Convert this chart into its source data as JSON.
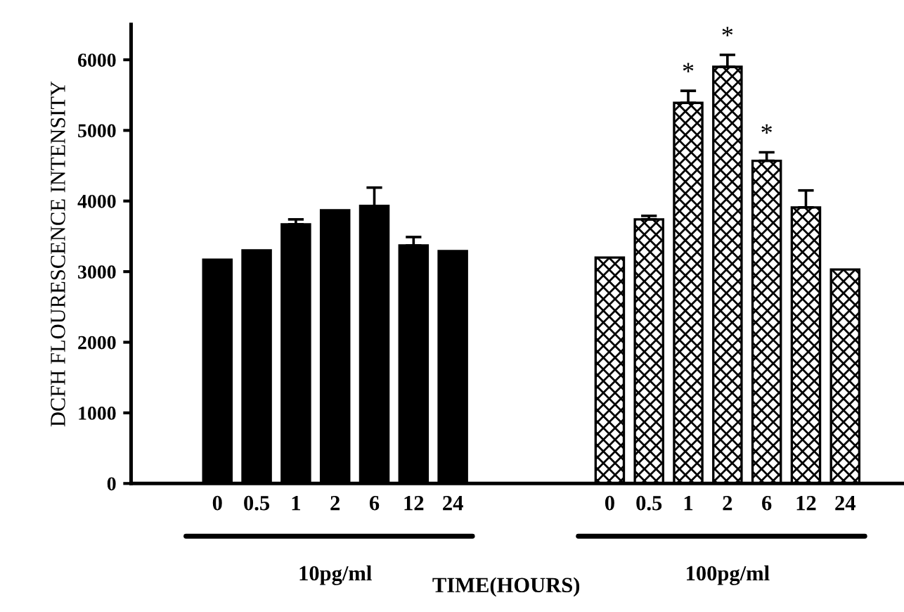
{
  "chart_data": {
    "type": "bar",
    "xlabel": "TIME(HOURS)",
    "ylabel": "DCFH FLOURESCENCE INTENSITY",
    "categories": [
      null,
      "0",
      "0.5",
      "1",
      "2",
      "6",
      "12",
      "24",
      null,
      null,
      null,
      "0",
      "0.5",
      "1",
      "2",
      "6",
      "12",
      "24",
      null
    ],
    "series": [
      {
        "color": "#000000",
        "values": [
          null,
          3170,
          3300,
          3670,
          3870,
          3930,
          3370,
          3290,
          null,
          null,
          null,
          null,
          null,
          null,
          null,
          null,
          null,
          null,
          null
        ],
        "errors": [
          null,
          null,
          null,
          [
            3670,
            3740
          ],
          null,
          [
            3930,
            4190
          ],
          [
            3370,
            3490
          ],
          null,
          null,
          null,
          null,
          null,
          null,
          null,
          null,
          null,
          null,
          null,
          null
        ]
      },
      {
        "color": "#000000",
        "values": [
          null,
          null,
          null,
          null,
          null,
          null,
          null,
          null,
          null,
          null,
          null,
          3200,
          3740,
          5390,
          5900,
          4570,
          3910,
          3030,
          null
        ],
        "errors": [
          null,
          null,
          null,
          null,
          null,
          null,
          null,
          null,
          null,
          null,
          null,
          null,
          [
            3740,
            3790
          ],
          [
            5390,
            5560
          ],
          [
            5900,
            6070
          ],
          [
            4570,
            4690
          ],
          [
            3910,
            4150
          ],
          null,
          null
        ],
        "value_labels": [
          null,
          null,
          null,
          null,
          null,
          null,
          null,
          null,
          null,
          null,
          null,
          null,
          null,
          "*",
          "*",
          "*",
          null,
          null,
          null
        ]
      }
    ],
    "annotations": [
      "10pg/ml",
      "100pg/ml"
    ],
    "ylim": [
      0,
      6500
    ],
    "yticks": [
      0,
      1000,
      2000,
      3000,
      4000,
      5000,
      6000
    ],
    "grid": false,
    "legend": false
  }
}
